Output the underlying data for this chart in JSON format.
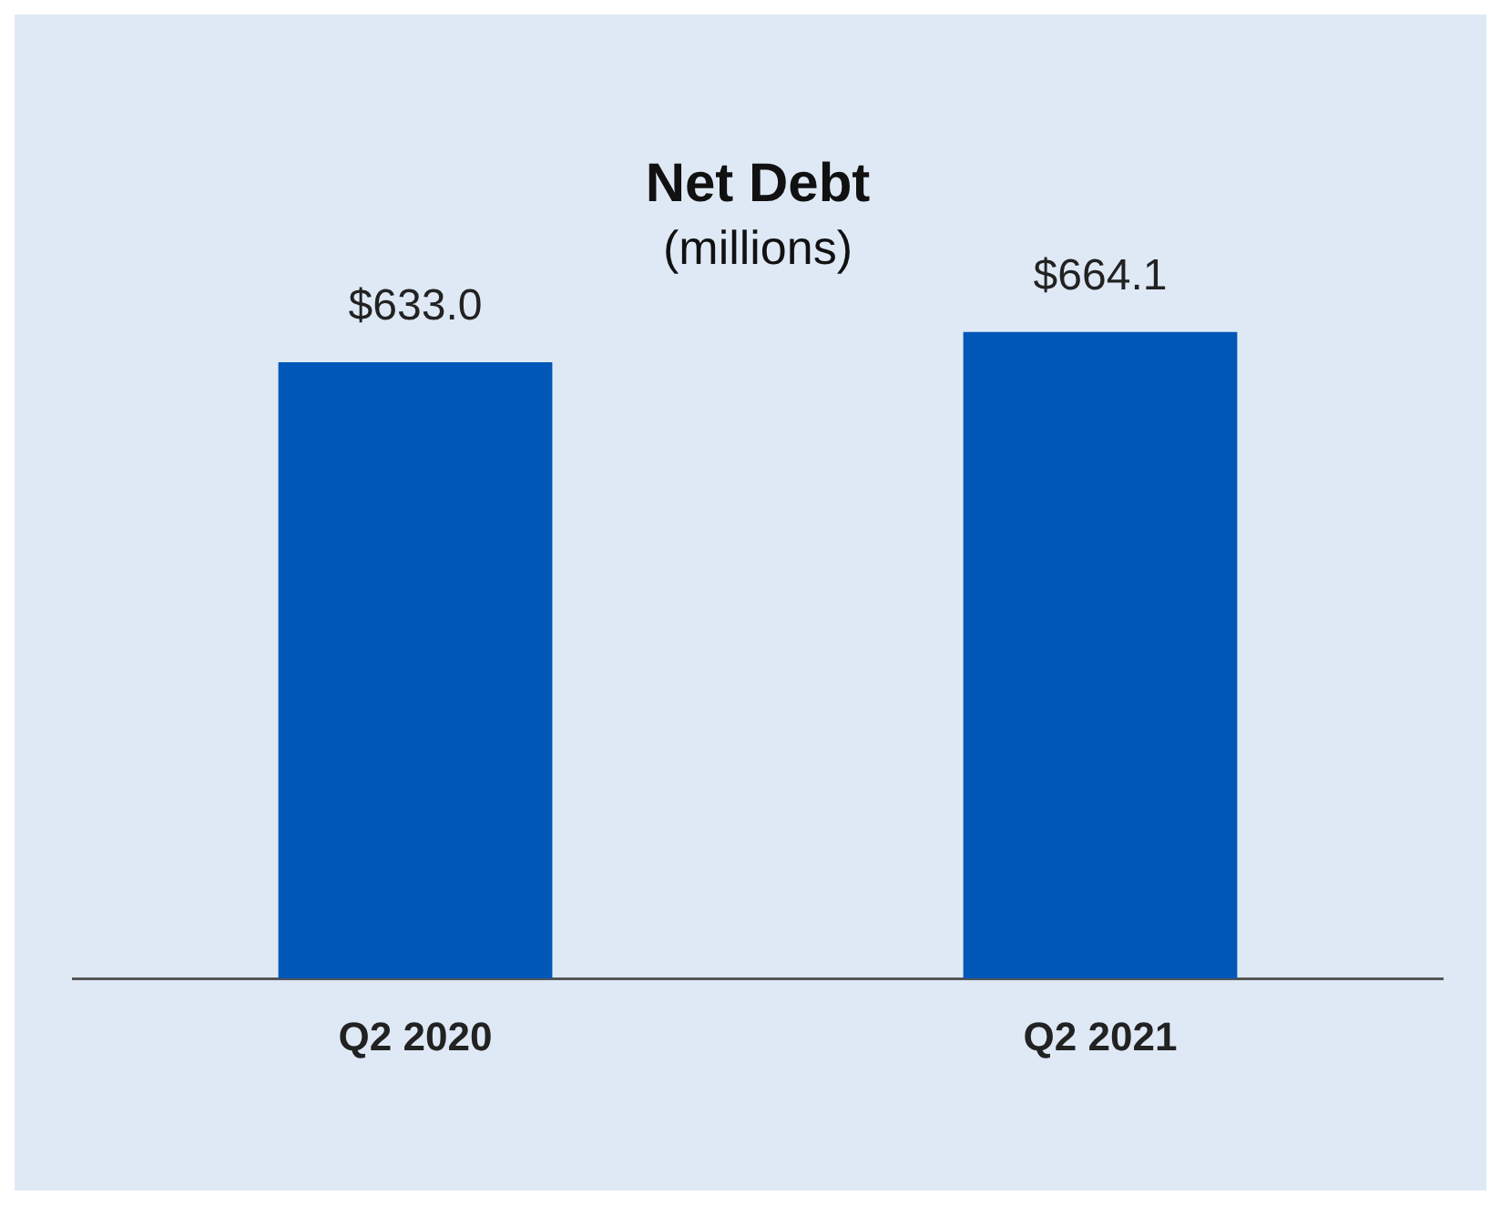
{
  "chart_data": {
    "type": "bar",
    "title": "Net Debt",
    "subtitle": "(millions)",
    "categories": [
      "Q2 2020",
      "Q2 2021"
    ],
    "values": [
      633.0,
      664.1
    ],
    "value_labels": [
      "$633.0",
      "$664.1"
    ],
    "color": "#0057b8",
    "grid": false,
    "legend": false,
    "tick_labels": "x"
  }
}
